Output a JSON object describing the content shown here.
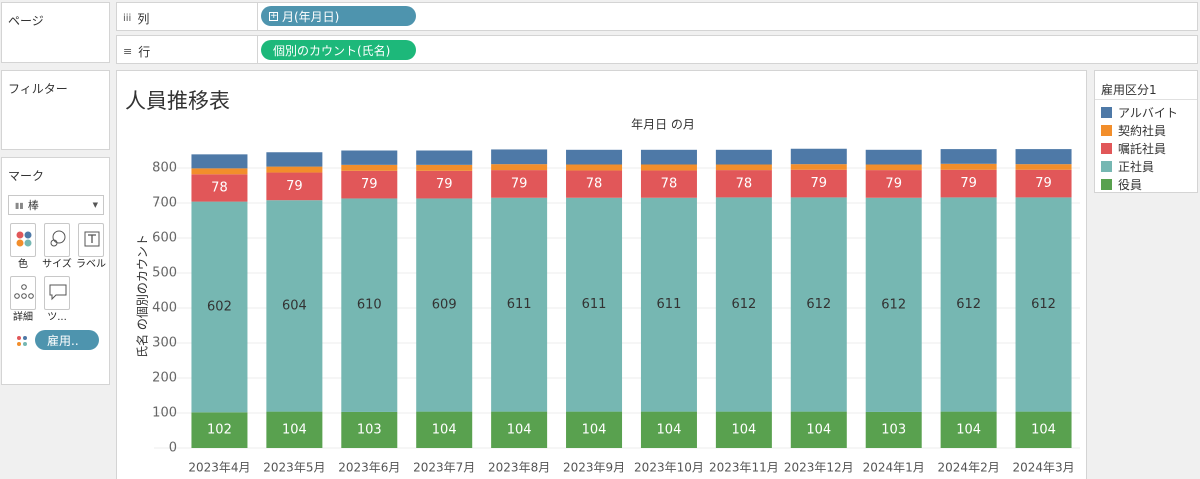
{
  "left_panel": {
    "pages_title": "ページ",
    "filters_title": "フィルター",
    "marks_title": "マーク",
    "mark_type": "棒",
    "buttons": [
      {
        "label": "色",
        "icon": "color-dots-icon"
      },
      {
        "label": "サイズ",
        "icon": "size-circles-icon"
      },
      {
        "label": "ラベル",
        "icon": "text-label-icon"
      },
      {
        "label": "詳細",
        "icon": "detail-dots-icon"
      },
      {
        "label": "ツ...",
        "icon": "tooltip-icon"
      }
    ],
    "color_pill": "雇用.."
  },
  "shelves": {
    "columns_label": "列",
    "columns_icon": "columns-icon",
    "columns_pill": "月(年月日)",
    "rows_label": "行",
    "rows_icon": "rows-icon",
    "rows_pill": "個別のカウント(氏名)"
  },
  "colors": {
    "pill_blue": "#4e94ae",
    "pill_green": "#1db87a"
  },
  "chart_data": {
    "type": "bar",
    "stacked": true,
    "title": "人員推移表",
    "header": "年月日 の月",
    "xlabel": "",
    "ylabel": "氏名 の個別のカウント",
    "ylim": [
      0,
      860
    ],
    "yticks": [
      0,
      100,
      200,
      300,
      400,
      500,
      600,
      700,
      800
    ],
    "grid": true,
    "legend_position": "right",
    "legend_title": "雇用区分1",
    "categories": [
      "2023年4月",
      "2023年5月",
      "2023年6月",
      "2023年7月",
      "2023年8月",
      "2023年9月",
      "2023年10月",
      "2023年11月",
      "2023年12月",
      "2024年1月",
      "2024年2月",
      "2024年3月"
    ],
    "series": [
      {
        "name": "役員",
        "color": "#59a14f",
        "labeled": true,
        "values": [
          102,
          104,
          103,
          104,
          104,
          104,
          104,
          104,
          104,
          103,
          104,
          104
        ]
      },
      {
        "name": "正社員",
        "color": "#76b7b2",
        "labeled": true,
        "values": [
          602,
          604,
          610,
          609,
          611,
          611,
          611,
          612,
          612,
          612,
          612,
          612
        ]
      },
      {
        "name": "嘱託社員",
        "color": "#e15759",
        "labeled": true,
        "values": [
          78,
          79,
          79,
          79,
          79,
          78,
          78,
          78,
          79,
          79,
          79,
          79
        ]
      },
      {
        "name": "契約社員",
        "color": "#f28e2b",
        "labeled": false,
        "values": [
          17,
          17,
          17,
          17,
          17,
          17,
          17,
          16,
          16,
          16,
          17,
          16
        ]
      },
      {
        "name": "アルバイト",
        "color": "#4e79a7",
        "labeled": false,
        "values": [
          40,
          41,
          41,
          41,
          42,
          42,
          42,
          42,
          44,
          42,
          42,
          43
        ]
      }
    ],
    "legend_order": [
      "アルバイト",
      "契約社員",
      "嘱託社員",
      "正社員",
      "役員"
    ]
  }
}
